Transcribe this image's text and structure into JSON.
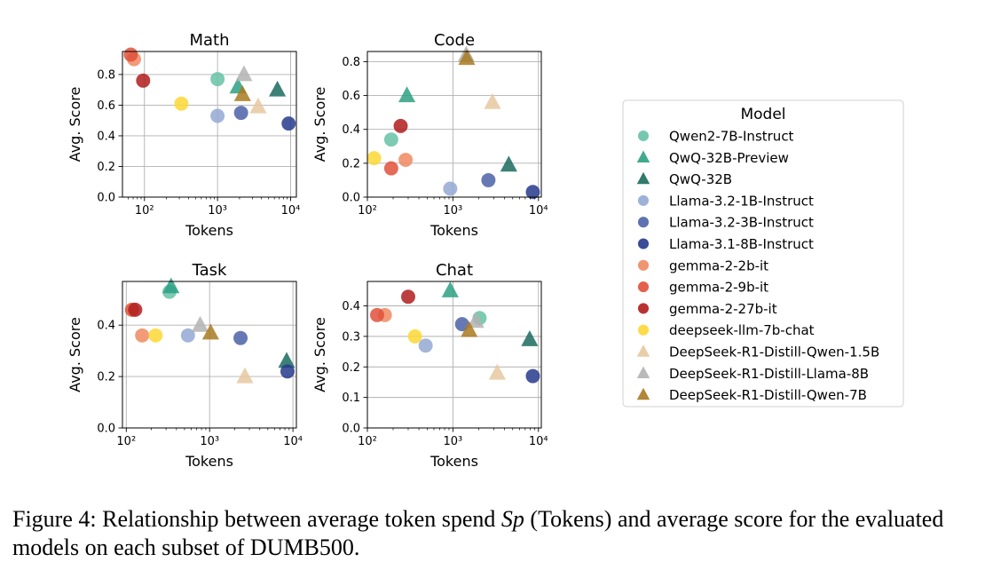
{
  "caption": {
    "label": "Figure 4:",
    "text_before": "Relationship between average token spend",
    "symbol": "Sp",
    "text_middle": "(Tokens) and average score for the evaluated models on each subset of",
    "dataset": "DUMB",
    "dataset_num": "500",
    "text_end": "."
  },
  "legend": {
    "title": "Model",
    "items": [
      {
        "name": "Qwen2-7B-Instruct",
        "marker": "circle",
        "color": "#66c2a5"
      },
      {
        "name": "QwQ-32B-Preview",
        "marker": "triangle",
        "color": "#2ca082"
      },
      {
        "name": "QwQ-32B",
        "marker": "triangle",
        "color": "#1b6b5e"
      },
      {
        "name": "Llama-3.2-1B-Instruct",
        "marker": "circle",
        "color": "#94a8d3"
      },
      {
        "name": "Llama-3.2-3B-Instruct",
        "marker": "circle",
        "color": "#4c62a8"
      },
      {
        "name": "Llama-3.1-8B-Instruct",
        "marker": "circle",
        "color": "#263a8c"
      },
      {
        "name": "gemma-2-2b-it",
        "marker": "circle",
        "color": "#f08a62"
      },
      {
        "name": "gemma-2-9b-it",
        "marker": "circle",
        "color": "#e0503a"
      },
      {
        "name": "gemma-2-27b-it",
        "marker": "circle",
        "color": "#b01c1c"
      },
      {
        "name": "deepseek-llm-7b-chat",
        "marker": "circle",
        "color": "#fdd835"
      },
      {
        "name": "DeepSeek-R1-Distill-Qwen-1.5B",
        "marker": "triangle",
        "color": "#e6c8a0"
      },
      {
        "name": "DeepSeek-R1-Distill-Llama-8B",
        "marker": "triangle",
        "color": "#b3b3b3"
      },
      {
        "name": "DeepSeek-R1-Distill-Qwen-7B",
        "marker": "triangle",
        "color": "#a87a20"
      }
    ]
  },
  "chart_data": [
    {
      "type": "scatter",
      "title": "Math",
      "xlabel": "Tokens",
      "ylabel": "Avg. Score",
      "xscale": "log",
      "xlim": [
        50,
        12000
      ],
      "ylim": [
        0.0,
        0.95
      ],
      "xticks": [
        {
          "value": 100,
          "label": "10²"
        },
        {
          "value": 1000,
          "label": "10³"
        },
        {
          "value": 10000,
          "label": "10⁴"
        }
      ],
      "yticks": [
        {
          "value": 0.0,
          "label": "0.0"
        },
        {
          "value": 0.2,
          "label": "0.2"
        },
        {
          "value": 0.4,
          "label": "0.4"
        },
        {
          "value": 0.6,
          "label": "0.6"
        },
        {
          "value": 0.8,
          "label": "0.8"
        }
      ],
      "points": [
        {
          "model": "Qwen2-7B-Instruct",
          "x": 1000,
          "y": 0.77
        },
        {
          "model": "QwQ-32B-Preview",
          "x": 1900,
          "y": 0.72
        },
        {
          "model": "QwQ-32B",
          "x": 6600,
          "y": 0.7
        },
        {
          "model": "Llama-3.2-1B-Instruct",
          "x": 1000,
          "y": 0.53
        },
        {
          "model": "Llama-3.2-3B-Instruct",
          "x": 2100,
          "y": 0.55
        },
        {
          "model": "Llama-3.1-8B-Instruct",
          "x": 9400,
          "y": 0.48
        },
        {
          "model": "gemma-2-2b-it",
          "x": 72,
          "y": 0.9
        },
        {
          "model": "gemma-2-9b-it",
          "x": 65,
          "y": 0.93
        },
        {
          "model": "gemma-2-27b-it",
          "x": 96,
          "y": 0.76
        },
        {
          "model": "deepseek-llm-7b-chat",
          "x": 320,
          "y": 0.61
        },
        {
          "model": "DeepSeek-R1-Distill-Qwen-1.5B",
          "x": 3600,
          "y": 0.59
        },
        {
          "model": "DeepSeek-R1-Distill-Llama-8B",
          "x": 2300,
          "y": 0.8
        },
        {
          "model": "DeepSeek-R1-Distill-Qwen-7B",
          "x": 2200,
          "y": 0.67
        }
      ]
    },
    {
      "type": "scatter",
      "title": "Code",
      "xlabel": "Tokens",
      "ylabel": "Avg. Score",
      "xscale": "log",
      "xlim": [
        100,
        10800
      ],
      "ylim": [
        0.0,
        0.86
      ],
      "xticks": [
        {
          "value": 100,
          "label": "10²"
        },
        {
          "value": 1000,
          "label": "10³"
        },
        {
          "value": 10000,
          "label": "10⁴"
        }
      ],
      "yticks": [
        {
          "value": 0.0,
          "label": "0.0"
        },
        {
          "value": 0.2,
          "label": "0.2"
        },
        {
          "value": 0.4,
          "label": "0.4"
        },
        {
          "value": 0.6,
          "label": "0.6"
        },
        {
          "value": 0.8,
          "label": "0.8"
        }
      ],
      "points": [
        {
          "model": "Qwen2-7B-Instruct",
          "x": 190,
          "y": 0.34
        },
        {
          "model": "QwQ-32B-Preview",
          "x": 290,
          "y": 0.6
        },
        {
          "model": "QwQ-32B",
          "x": 4500,
          "y": 0.19
        },
        {
          "model": "Llama-3.2-1B-Instruct",
          "x": 930,
          "y": 0.05
        },
        {
          "model": "Llama-3.2-3B-Instruct",
          "x": 2600,
          "y": 0.1
        },
        {
          "model": "Llama-3.1-8B-Instruct",
          "x": 8600,
          "y": 0.03
        },
        {
          "model": "gemma-2-2b-it",
          "x": 280,
          "y": 0.22
        },
        {
          "model": "gemma-2-9b-it",
          "x": 190,
          "y": 0.17
        },
        {
          "model": "gemma-2-27b-it",
          "x": 245,
          "y": 0.42
        },
        {
          "model": "deepseek-llm-7b-chat",
          "x": 120,
          "y": 0.23
        },
        {
          "model": "DeepSeek-R1-Distill-Qwen-1.5B",
          "x": 2900,
          "y": 0.56
        },
        {
          "model": "DeepSeek-R1-Distill-Llama-8B",
          "x": 1430,
          "y": 0.84
        },
        {
          "model": "DeepSeek-R1-Distill-Qwen-7B",
          "x": 1450,
          "y": 0.82
        }
      ]
    },
    {
      "type": "scatter",
      "title": "Task",
      "xlabel": "Tokens",
      "ylabel": "Avg. Score",
      "xscale": "log",
      "xlim": [
        90,
        11000
      ],
      "ylim": [
        0.0,
        0.57
      ],
      "xticks": [
        {
          "value": 100,
          "label": "10²"
        },
        {
          "value": 1000,
          "label": "10³"
        },
        {
          "value": 10000,
          "label": "10⁴"
        }
      ],
      "yticks": [
        {
          "value": 0.0,
          "label": "0.0"
        },
        {
          "value": 0.2,
          "label": "0.2"
        },
        {
          "value": 0.4,
          "label": "0.4"
        }
      ],
      "points": [
        {
          "model": "Qwen2-7B-Instruct",
          "x": 330,
          "y": 0.53
        },
        {
          "model": "QwQ-32B-Preview",
          "x": 345,
          "y": 0.55
        },
        {
          "model": "QwQ-32B",
          "x": 8400,
          "y": 0.26
        },
        {
          "model": "Llama-3.2-1B-Instruct",
          "x": 550,
          "y": 0.36
        },
        {
          "model": "Llama-3.2-3B-Instruct",
          "x": 2350,
          "y": 0.35
        },
        {
          "model": "Llama-3.1-8B-Instruct",
          "x": 8600,
          "y": 0.22
        },
        {
          "model": "gemma-2-2b-it",
          "x": 155,
          "y": 0.36
        },
        {
          "model": "gemma-2-9b-it",
          "x": 117,
          "y": 0.46
        },
        {
          "model": "gemma-2-27b-it",
          "x": 128,
          "y": 0.46
        },
        {
          "model": "deepseek-llm-7b-chat",
          "x": 225,
          "y": 0.36
        },
        {
          "model": "DeepSeek-R1-Distill-Qwen-1.5B",
          "x": 2650,
          "y": 0.2
        },
        {
          "model": "DeepSeek-R1-Distill-Llama-8B",
          "x": 770,
          "y": 0.4
        },
        {
          "model": "DeepSeek-R1-Distill-Qwen-7B",
          "x": 1030,
          "y": 0.37
        }
      ]
    },
    {
      "type": "scatter",
      "title": "Chat",
      "xlabel": "Tokens",
      "ylabel": "Avg. Score",
      "xscale": "log",
      "xlim": [
        100,
        10800
      ],
      "ylim": [
        0.0,
        0.48
      ],
      "xticks": [
        {
          "value": 100,
          "label": "10²"
        },
        {
          "value": 1000,
          "label": "10³"
        },
        {
          "value": 10000,
          "label": "10⁴"
        }
      ],
      "yticks": [
        {
          "value": 0.0,
          "label": "0.0"
        },
        {
          "value": 0.1,
          "label": "0.1"
        },
        {
          "value": 0.2,
          "label": "0.2"
        },
        {
          "value": 0.3,
          "label": "0.3"
        },
        {
          "value": 0.4,
          "label": "0.4"
        }
      ],
      "points": [
        {
          "model": "Qwen2-7B-Instruct",
          "x": 2050,
          "y": 0.36
        },
        {
          "model": "QwQ-32B-Preview",
          "x": 930,
          "y": 0.45
        },
        {
          "model": "QwQ-32B",
          "x": 7900,
          "y": 0.29
        },
        {
          "model": "Llama-3.2-1B-Instruct",
          "x": 480,
          "y": 0.27
        },
        {
          "model": "Llama-3.2-3B-Instruct",
          "x": 1280,
          "y": 0.34
        },
        {
          "model": "Llama-3.1-8B-Instruct",
          "x": 8600,
          "y": 0.17
        },
        {
          "model": "gemma-2-2b-it",
          "x": 160,
          "y": 0.37
        },
        {
          "model": "gemma-2-9b-it",
          "x": 130,
          "y": 0.37
        },
        {
          "model": "gemma-2-27b-it",
          "x": 300,
          "y": 0.43
        },
        {
          "model": "deepseek-llm-7b-chat",
          "x": 360,
          "y": 0.3
        },
        {
          "model": "DeepSeek-R1-Distill-Qwen-1.5B",
          "x": 3300,
          "y": 0.18
        },
        {
          "model": "DeepSeek-R1-Distill-Llama-8B",
          "x": 1850,
          "y": 0.35
        },
        {
          "model": "DeepSeek-R1-Distill-Qwen-7B",
          "x": 1550,
          "y": 0.32
        }
      ]
    }
  ]
}
